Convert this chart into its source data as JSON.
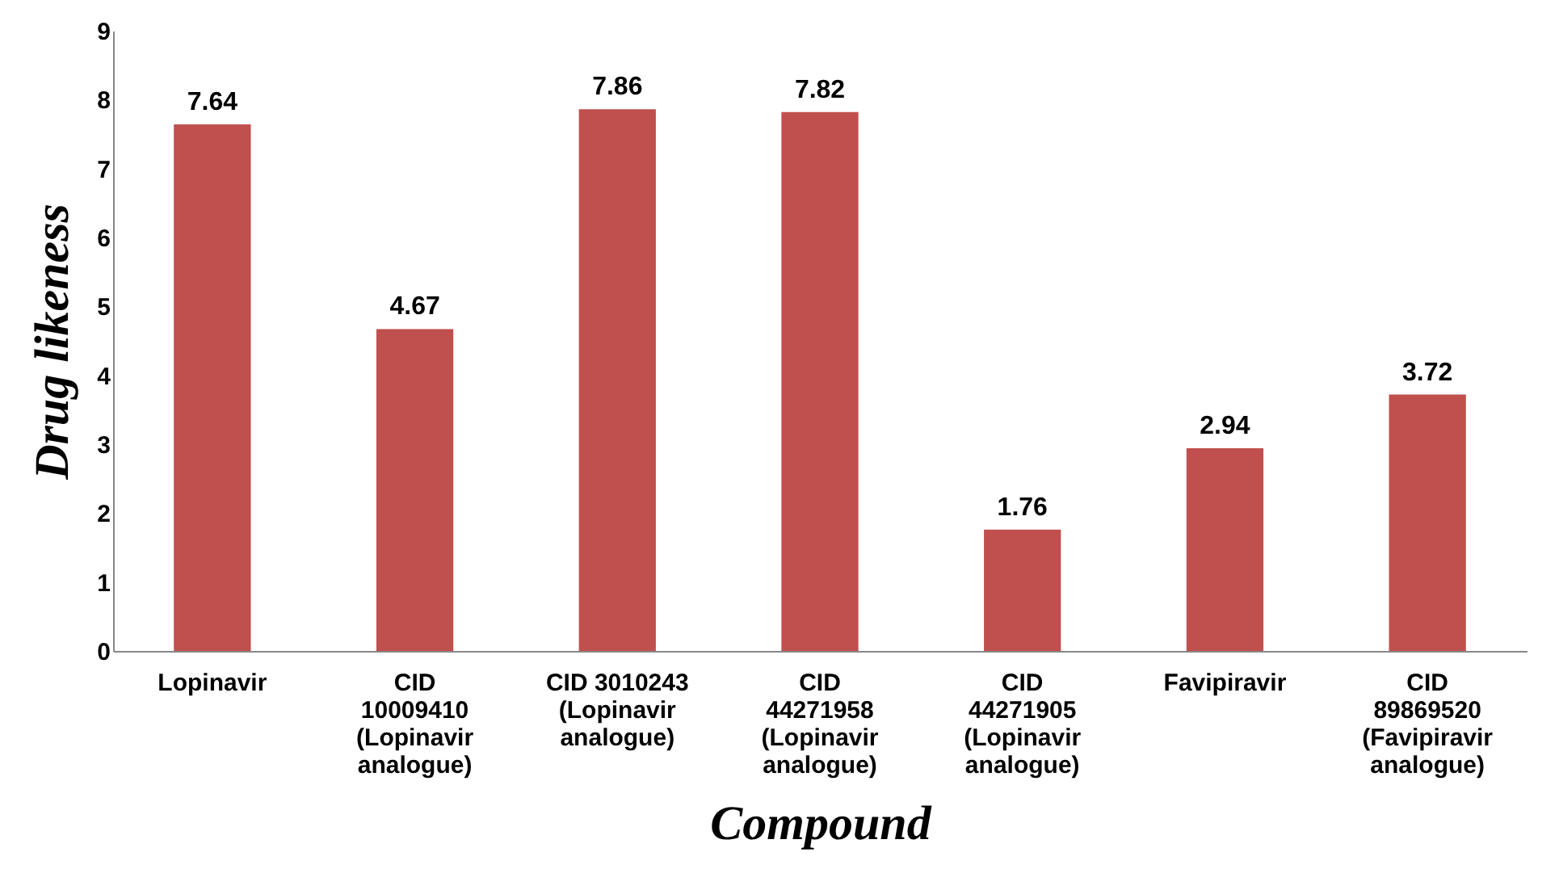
{
  "chart_data": {
    "type": "bar",
    "xlabel": "Compound",
    "ylabel": "Drug likeness",
    "categories": [
      "Lopinavir",
      "CID 10009410 (Lopinavir analogue)",
      "CID 3010243 (Lopinavir analogue)",
      "CID 44271958 (Lopinavir analogue)",
      "CID 44271905 (Lopinavir analogue)",
      "Favipiravir",
      "CID 89869520 (Favipiravir analogue)"
    ],
    "values": [
      7.64,
      4.67,
      7.86,
      7.82,
      1.76,
      2.94,
      3.72
    ],
    "color": "#c0504d",
    "ylim": [
      0,
      9
    ],
    "yticks": [
      0,
      1,
      2,
      3,
      4,
      5,
      6,
      7,
      8,
      9
    ],
    "grid": false,
    "data_labels": true
  }
}
